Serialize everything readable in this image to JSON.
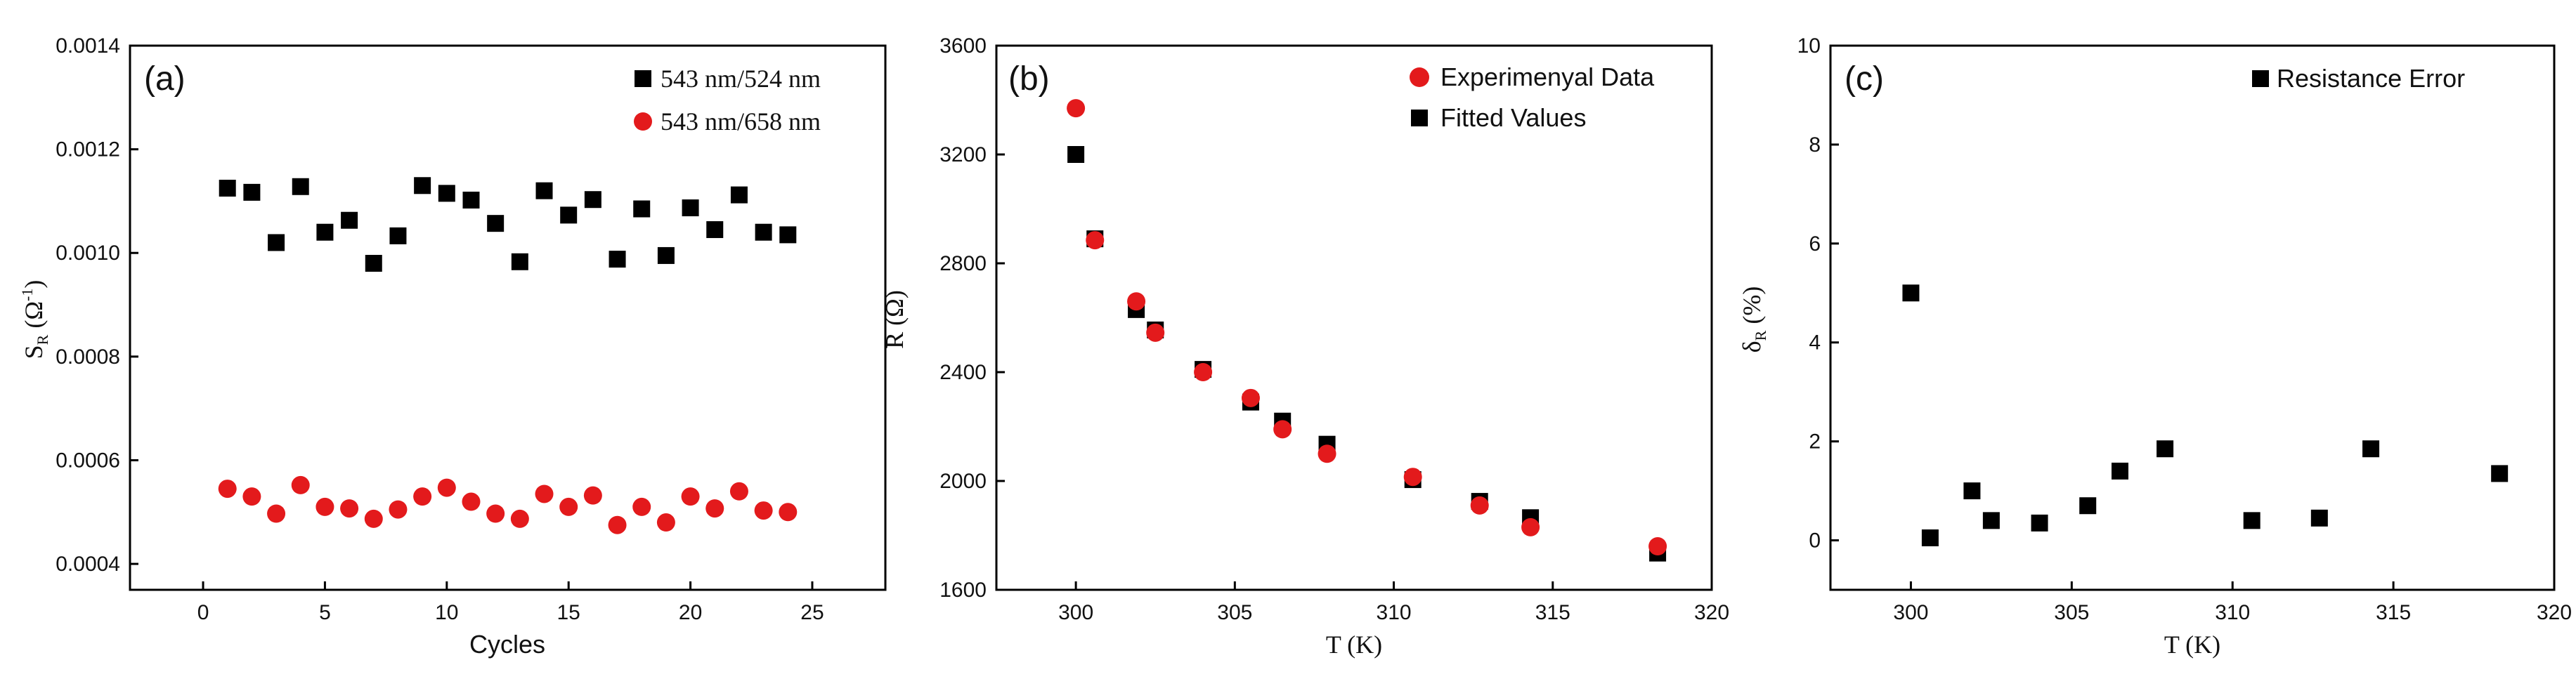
{
  "chart_data": [
    {
      "panel": "(a)",
      "type": "scatter",
      "xlabel": "Cycles",
      "ylabel": "S",
      "ylabel_sub": "R",
      "ylabel_unit": " (Ω",
      "ylabel_unit_sup": "-1",
      "ylabel_close": ")",
      "xlim": [
        -3,
        28
      ],
      "ylim": [
        0.00035,
        0.0014
      ],
      "xticks": [
        0,
        5,
        10,
        15,
        20,
        25
      ],
      "xtick_labels": [
        "0",
        "5",
        "10",
        "15",
        "20",
        "25"
      ],
      "yticks": [
        0.0004,
        0.0006,
        0.0008,
        0.001,
        0.0012,
        0.0014
      ],
      "ytick_labels": [
        "0.0004",
        "0.0006",
        "0.0008",
        "0.0010",
        "0.0012",
        "0.0014"
      ],
      "legend_position": "top-right",
      "series": [
        {
          "name": "543 nm/524 nm",
          "marker": "square",
          "color": "#000000",
          "x": [
            1,
            2,
            3,
            4,
            5,
            6,
            7,
            8,
            9,
            10,
            11,
            12,
            13,
            14,
            15,
            16,
            17,
            18,
            19,
            20,
            21,
            22,
            23,
            24
          ],
          "y": [
            0.001125,
            0.001117,
            0.00102,
            0.001128,
            0.00104,
            0.001063,
            0.00098,
            0.001033,
            0.00113,
            0.001115,
            0.001102,
            0.001057,
            0.000983,
            0.00112,
            0.001073,
            0.001103,
            0.000988,
            0.001085,
            0.000995,
            0.001087,
            0.001045,
            0.001112,
            0.00104,
            0.001035
          ]
        },
        {
          "name": "543 nm/658 nm",
          "marker": "circle",
          "color": "#e31a1c",
          "x": [
            1,
            2,
            3,
            4,
            5,
            6,
            7,
            8,
            9,
            10,
            11,
            12,
            13,
            14,
            15,
            16,
            17,
            18,
            19,
            20,
            21,
            22,
            23,
            24
          ],
          "y": [
            0.000545,
            0.00053,
            0.000497,
            0.000552,
            0.00051,
            0.000507,
            0.000487,
            0.000505,
            0.00053,
            0.000547,
            0.00052,
            0.000497,
            0.000487,
            0.000535,
            0.00051,
            0.000532,
            0.000475,
            0.00051,
            0.00048,
            0.00053,
            0.000507,
            0.00054,
            0.000503,
            0.0005
          ]
        }
      ]
    },
    {
      "panel": "(b)",
      "type": "scatter",
      "xlabel": "T (K)",
      "ylabel": "R (Ω)",
      "xlim": [
        297.5,
        320
      ],
      "ylim": [
        1600,
        3600
      ],
      "xticks": [
        300,
        305,
        310,
        315,
        320
      ],
      "xtick_labels": [
        "300",
        "305",
        "310",
        "315",
        "320"
      ],
      "yticks": [
        1600,
        2000,
        2400,
        2800,
        3200,
        3600
      ],
      "ytick_labels": [
        "1600",
        "2000",
        "2400",
        "2800",
        "3200",
        "3600"
      ],
      "legend_position": "top-right",
      "series": [
        {
          "name": "Fitted Values",
          "marker": "square",
          "color": "#000000",
          "x": [
            300,
            300.6,
            301.9,
            302.5,
            304,
            305.5,
            306.5,
            307.9,
            310.6,
            312.7,
            314.3,
            318.3
          ],
          "y": [
            3200,
            2890,
            2630,
            2555,
            2410,
            2290,
            2220,
            2135,
            2005,
            1925,
            1865,
            1735
          ]
        },
        {
          "name": "Experimenyal Data",
          "marker": "circle",
          "color": "#e31a1c",
          "x": [
            300,
            300.6,
            301.9,
            302.5,
            304,
            305.5,
            306.5,
            307.9,
            310.6,
            312.7,
            314.3,
            318.3
          ],
          "y": [
            3370,
            2885,
            2660,
            2545,
            2400,
            2305,
            2190,
            2100,
            2015,
            1910,
            1830,
            1760
          ]
        }
      ]
    },
    {
      "panel": "(c)",
      "type": "scatter",
      "xlabel": "T (K)",
      "ylabel": "δ",
      "ylabel_sub": "R",
      "ylabel_unit": " (%)",
      "xlim": [
        297.5,
        320
      ],
      "ylim": [
        -1,
        10
      ],
      "xticks": [
        300,
        305,
        310,
        315,
        320
      ],
      "xtick_labels": [
        "300",
        "305",
        "310",
        "315",
        "320"
      ],
      "yticks": [
        0,
        2,
        4,
        6,
        8,
        10
      ],
      "ytick_labels": [
        "0",
        "2",
        "4",
        "6",
        "8",
        "10"
      ],
      "legend_position": "top-right",
      "series": [
        {
          "name": "Resistance Error",
          "marker": "square",
          "color": "#000000",
          "x": [
            300,
            300.6,
            301.9,
            302.5,
            304,
            305.5,
            306.5,
            307.9,
            310.6,
            312.7,
            314.3,
            318.3
          ],
          "y": [
            5.0,
            0.05,
            1.0,
            0.4,
            0.35,
            0.7,
            1.4,
            1.85,
            0.4,
            0.45,
            1.85,
            1.35
          ]
        }
      ]
    }
  ]
}
